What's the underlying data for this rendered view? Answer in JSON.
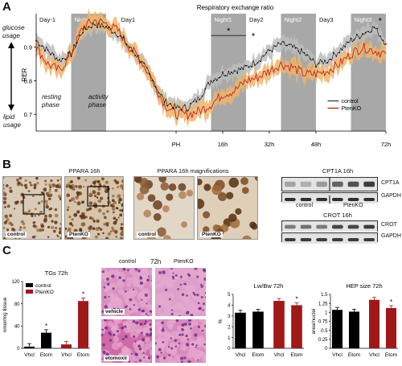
{
  "panel_a": {
    "letter": "A",
    "title": "Respiratory exchange ratio",
    "phases": [
      "Day-1",
      "Night-1",
      "Day1",
      "Night1",
      "Day2",
      "Night2",
      "Day3",
      "Night3"
    ],
    "ylabel": "RER",
    "y_ticks": [
      "0.7",
      "0.8",
      "0.9"
    ],
    "x_ticks": [
      "PH",
      "16h",
      "32h",
      "48h",
      "72h"
    ],
    "glucose_usage": "glucose\nusage",
    "lipid_usage": "lipid\nusage",
    "resting_phase": "resting\nphase",
    "activity_phase": "activity\nphase",
    "star": "*",
    "legend": [
      "control",
      "PtenKO"
    ],
    "colors": {
      "control": "#111111",
      "ptenko": "#c0281e",
      "control_band": "#bdbdbd",
      "ptenko_band": "#f0b468",
      "night": "#a8a8a8"
    }
  },
  "chart_data": [
    {
      "type": "line",
      "title": "Respiratory exchange ratio",
      "xlabel": "",
      "ylabel": "RER",
      "ylim": [
        0.65,
        1.0
      ],
      "x_ticks": [
        "PH",
        "16h",
        "32h",
        "48h",
        "72h"
      ],
      "series": [
        {
          "name": "control",
          "x": [
            -48,
            -44,
            -40,
            -36,
            -32,
            -28,
            -24,
            -20,
            -16,
            -12,
            -8,
            -4,
            0,
            4,
            8,
            12,
            16,
            20,
            24,
            28,
            32,
            36,
            40,
            44,
            48,
            52,
            56,
            60,
            64,
            68,
            72
          ],
          "values": [
            0.92,
            0.89,
            0.86,
            0.88,
            0.95,
            0.97,
            0.96,
            0.94,
            0.9,
            0.86,
            0.8,
            0.74,
            0.72,
            0.72,
            0.75,
            0.8,
            0.82,
            0.83,
            0.84,
            0.86,
            0.89,
            0.91,
            0.9,
            0.88,
            0.85,
            0.86,
            0.89,
            0.92,
            0.94,
            0.96,
            0.91
          ]
        },
        {
          "name": "PtenKO",
          "x": [
            -48,
            -44,
            -40,
            -36,
            -32,
            -28,
            -24,
            -20,
            -16,
            -12,
            -8,
            -4,
            0,
            4,
            8,
            12,
            16,
            20,
            24,
            28,
            32,
            36,
            40,
            44,
            48,
            52,
            56,
            60,
            64,
            68,
            72
          ],
          "values": [
            0.9,
            0.85,
            0.83,
            0.88,
            0.96,
            0.98,
            0.97,
            0.95,
            0.9,
            0.86,
            0.8,
            0.73,
            0.7,
            0.7,
            0.71,
            0.73,
            0.76,
            0.77,
            0.8,
            0.81,
            0.83,
            0.85,
            0.84,
            0.82,
            0.82,
            0.83,
            0.85,
            0.88,
            0.9,
            0.89,
            0.88
          ]
        }
      ]
    },
    {
      "type": "bar",
      "title": "TGs 72h",
      "ylabel": "nmol/mg tissue",
      "categories": [
        "Vhcl",
        "Etom",
        "Vhcl",
        "Etom"
      ],
      "values": [
        3,
        28,
        7,
        85
      ],
      "ylim": [
        0,
        120
      ],
      "y_ticks": [
        "0",
        "40",
        "80",
        "120"
      ],
      "legend": [
        "control",
        "PtenKO"
      ],
      "colors": [
        "#000000",
        "#000000",
        "#a01818",
        "#a01818"
      ],
      "stars": [
        "",
        "*",
        "",
        "*"
      ]
    },
    {
      "type": "bar",
      "title": "Lw/Bw 72h",
      "ylabel": "%",
      "categories": [
        "Vhcl",
        "Etom",
        "Vhcl",
        "Etom"
      ],
      "values": [
        3.3,
        3.4,
        4.4,
        4.0
      ],
      "ylim": [
        0,
        5
      ],
      "y_ticks": [
        "0",
        "1",
        "2",
        "3",
        "4",
        "5"
      ],
      "colors": [
        "#000000",
        "#000000",
        "#a01818",
        "#a01818"
      ],
      "stars": [
        "",
        "",
        "",
        "*"
      ]
    },
    {
      "type": "bar",
      "title": "HEP size 72h",
      "ylabel": "area/nuclei",
      "categories": [
        "Vhcl",
        "Etom",
        "Vhcl",
        "Etom"
      ],
      "values": [
        1.07,
        1.02,
        1.35,
        1.12
      ],
      "ylim": [
        0,
        1.5
      ],
      "y_ticks": [
        "0",
        "0.25",
        "0.5",
        "0.75",
        "1",
        "1.25",
        "1.5"
      ],
      "colors": [
        "#000000",
        "#000000",
        "#a01818",
        "#a01818"
      ],
      "stars": [
        "",
        "",
        "",
        "*"
      ]
    }
  ],
  "panel_b": {
    "letter": "B",
    "ppara_title": "PPARA 16h",
    "magn_title": "PPARA 16h magnifications",
    "micro_labels": [
      "control",
      "PtenKO",
      "control",
      "PtenKO"
    ],
    "cpt1a_title": "CPT1A 16h",
    "crot_title": "CROT 16h",
    "blot_labels": [
      "CPT1A",
      "GAPDH",
      "CROT",
      "GAPDH"
    ],
    "group_labels": [
      "control",
      "PtenKO"
    ]
  },
  "panel_c": {
    "letter": "C",
    "histo_header": [
      "control",
      "72h",
      "PtenKO"
    ],
    "histo_labels": [
      "vehicle",
      "etomoxir"
    ]
  }
}
